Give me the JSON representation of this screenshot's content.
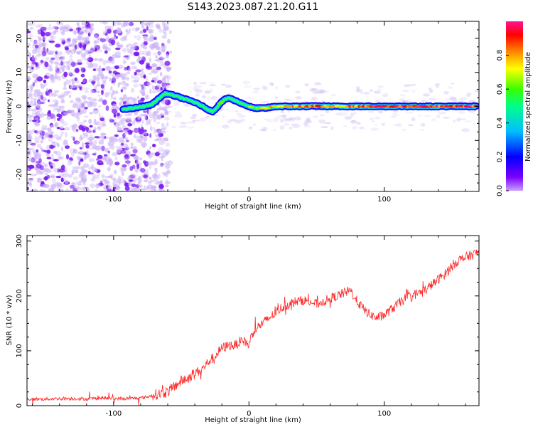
{
  "title": "S143.2023.087.21.20.G11",
  "colors": {
    "background": "#ffffff",
    "axis": "#000000",
    "snr_line": "#ff0000",
    "noise_faint": "#c9b0f5",
    "noise_strong": "#7a1cf0",
    "colorbar": [
      "#c8a0ff",
      "#7b00ff",
      "#0000ff",
      "#00bfff",
      "#00ff88",
      "#39ff00",
      "#ffff00",
      "#ff8800",
      "#ff0000",
      "#ff1493"
    ]
  },
  "chart_data": [
    {
      "type": "heatmap",
      "name": "spectrogram",
      "title": "",
      "xlabel": "Height of straight line (km)",
      "ylabel": "Frequency (Hz)",
      "xlim": [
        -164,
        170
      ],
      "ylim": [
        -25,
        25
      ],
      "xticks": [
        -100,
        0,
        100
      ],
      "yticks": [
        -20,
        -10,
        0,
        10,
        20
      ],
      "colorbar": {
        "label": "Normalized spectral amplitude",
        "range": [
          0.0,
          1.0
        ],
        "ticks": [
          0.0,
          0.2,
          0.4,
          0.6,
          0.8
        ]
      },
      "noise_region_x": [
        -164,
        -62
      ],
      "signal_track": {
        "x": [
          -93,
          -85,
          -78,
          -72,
          -66,
          -62,
          -58,
          -54,
          -50,
          -46,
          -42,
          -38,
          -34,
          -30,
          -27,
          -24,
          -21,
          -18,
          -15,
          -12,
          -9,
          -6,
          -3,
          0,
          4,
          8,
          12,
          20,
          30,
          40,
          50,
          60,
          70,
          80,
          90,
          100,
          110,
          120,
          130,
          140,
          150,
          160,
          168
        ],
        "frequency_hz": [
          -0.8,
          -0.5,
          0,
          0.5,
          2.5,
          3.8,
          3.5,
          3,
          2.5,
          2,
          1.5,
          0.8,
          0,
          -1,
          -1.5,
          -0.5,
          1,
          2,
          2.5,
          2,
          1.5,
          1,
          0.5,
          0,
          -0.5,
          -0.5,
          -0.5,
          0,
          0,
          0,
          0.1,
          0,
          0,
          0,
          0,
          0,
          0,
          0,
          0,
          0,
          0,
          0,
          0
        ],
        "amplitude": [
          0.2,
          0.25,
          0.3,
          0.35,
          0.5,
          0.5,
          0.45,
          0.45,
          0.4,
          0.45,
          0.45,
          0.5,
          0.5,
          0.5,
          0.45,
          0.45,
          0.5,
          0.55,
          0.6,
          0.55,
          0.5,
          0.5,
          0.55,
          0.6,
          0.6,
          0.65,
          0.7,
          0.75,
          0.8,
          0.85,
          0.8,
          0.85,
          0.8,
          0.8,
          0.85,
          0.9,
          0.9,
          0.92,
          0.92,
          0.9,
          0.92,
          0.9,
          0.9
        ]
      }
    },
    {
      "type": "line",
      "name": "snr",
      "title": "",
      "xlabel": "Height of straight line (km)",
      "ylabel": "SNR (10 * v/v)",
      "xlim": [
        -164,
        170
      ],
      "ylim": [
        0,
        310
      ],
      "xticks": [
        -100,
        0,
        100
      ],
      "yticks": [
        0,
        100,
        200,
        300
      ],
      "grid": false,
      "series": [
        {
          "x": [
            -164,
            -150,
            -140,
            -130,
            -120,
            -110,
            -100,
            -90,
            -80,
            -75,
            -70,
            -65,
            -60,
            -55,
            -50,
            -45,
            -40,
            -35,
            -30,
            -25,
            -20,
            -15,
            -10,
            -5,
            -2,
            0,
            2,
            5,
            10,
            15,
            20,
            25,
            30,
            35,
            40,
            45,
            50,
            55,
            60,
            65,
            70,
            75,
            80,
            85,
            90,
            95,
            100,
            105,
            110,
            115,
            120,
            125,
            130,
            135,
            140,
            145,
            150,
            155,
            160,
            165,
            170
          ],
          "values": [
            12,
            12,
            13,
            13,
            12,
            14,
            13,
            13,
            14,
            16,
            20,
            22,
            25,
            35,
            45,
            50,
            60,
            65,
            80,
            90,
            105,
            110,
            110,
            120,
            115,
            110,
            130,
            140,
            150,
            160,
            170,
            180,
            185,
            190,
            192,
            190,
            185,
            190,
            195,
            200,
            205,
            210,
            190,
            175,
            165,
            160,
            165,
            175,
            185,
            195,
            200,
            205,
            210,
            220,
            230,
            240,
            255,
            265,
            270,
            275,
            280
          ]
        }
      ]
    }
  ]
}
